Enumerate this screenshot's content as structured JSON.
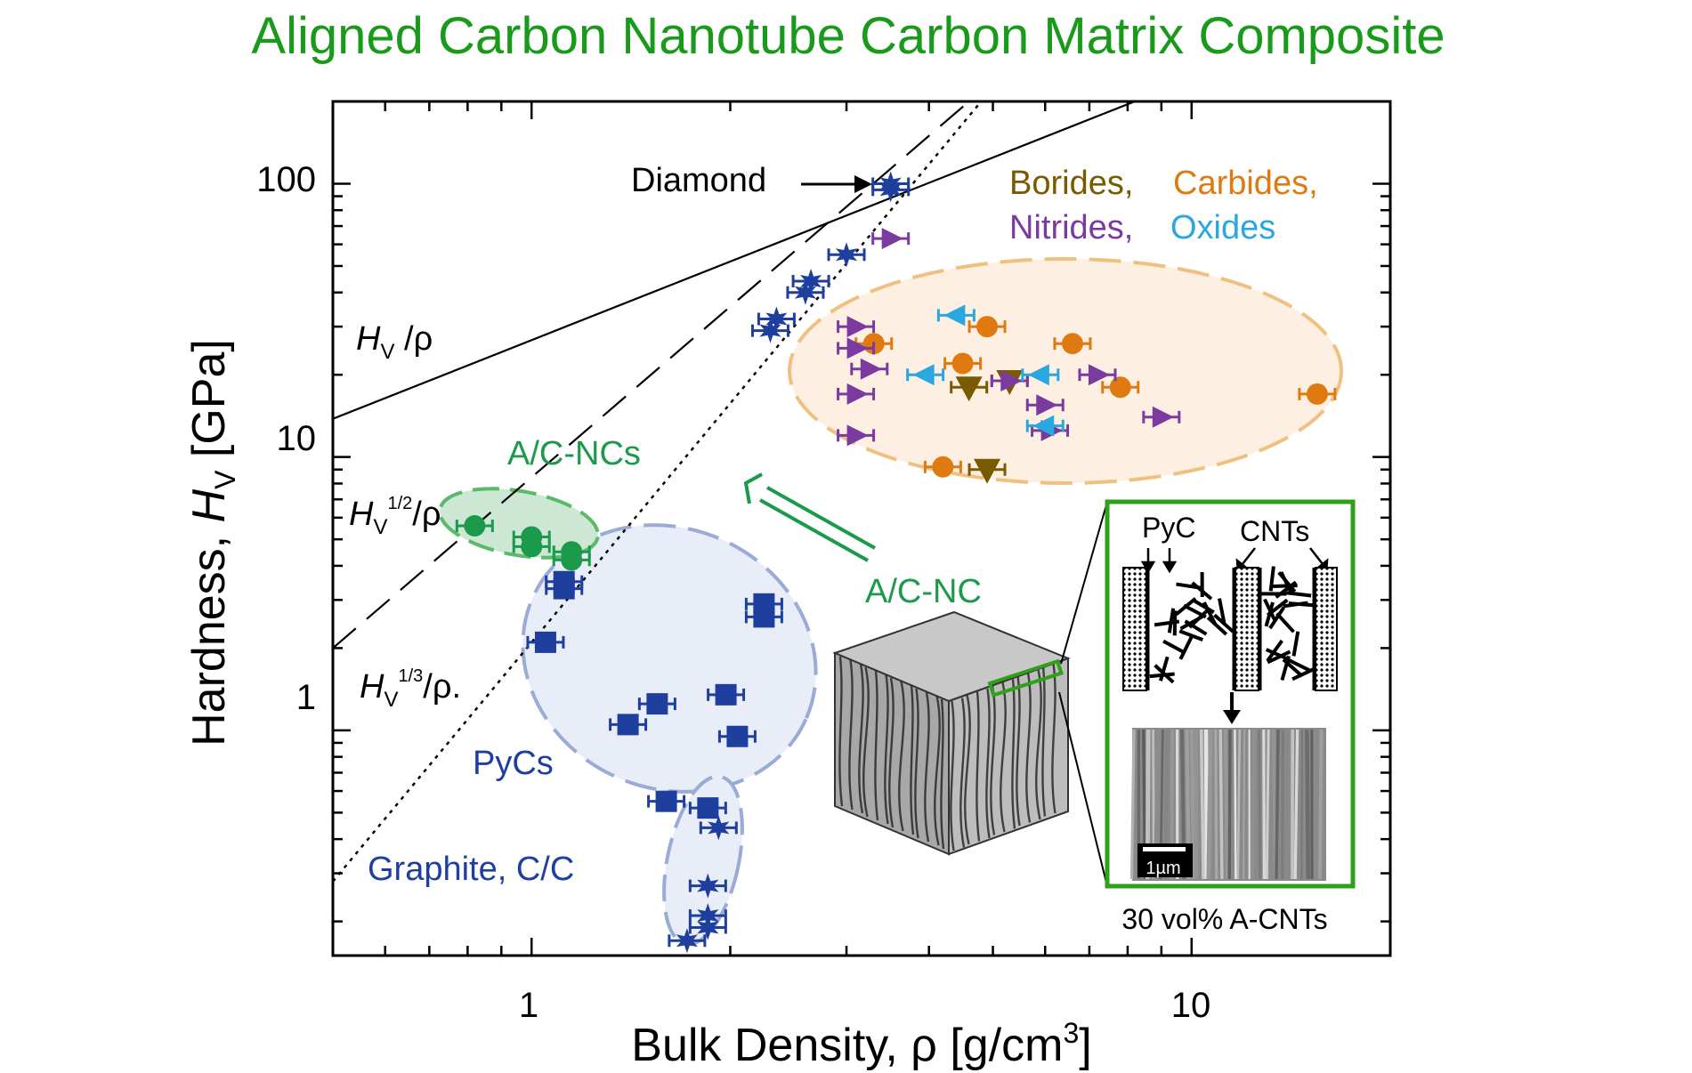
{
  "chart_data": {
    "type": "scatter",
    "title": "Aligned Carbon Nanotube Carbon Matrix Composite",
    "xlabel": "Bulk Density, ρ [g/cm³]",
    "ylabel": "Hardness, H_V [GPa]",
    "x_scale": "log",
    "y_scale": "log",
    "xlim": [
      0.5,
      20
    ],
    "ylim": [
      0.15,
      200
    ],
    "x_ticks": [
      "1",
      "10"
    ],
    "y_ticks": [
      "1",
      "10",
      "100"
    ],
    "guide_lines": [
      {
        "name": "H_V/ρ",
        "style": "solid",
        "label_sup": "",
        "x": [
          0.5,
          8.2
        ],
        "y": [
          13.8,
          200
        ]
      },
      {
        "name": "H_V^(1/2)/ρ",
        "style": "dashed",
        "label_sup": "1/2",
        "x": [
          0.5,
          4.6
        ],
        "y": [
          2.0,
          200
        ]
      },
      {
        "name": "H_V^(1/3)/ρ",
        "style": "dotted",
        "label_sup": "1/3",
        "x": [
          0.5,
          4.8
        ],
        "y": [
          0.28,
          200
        ]
      }
    ],
    "groups": [
      {
        "name": "A/C-NCs",
        "color": "#1a9a4a",
        "marker": "circle",
        "points": [
          [
            0.82,
            5.6
          ],
          [
            1.0,
            5.1
          ],
          [
            1.0,
            4.7
          ],
          [
            1.15,
            4.5
          ],
          [
            1.15,
            4.2
          ]
        ]
      },
      {
        "name": "PyCs",
        "color": "#1f3f9f",
        "marker": "square",
        "points": [
          [
            1.12,
            3.5
          ],
          [
            1.12,
            3.3
          ],
          [
            1.05,
            2.1
          ],
          [
            1.4,
            1.05
          ],
          [
            1.55,
            1.25
          ],
          [
            1.6,
            0.55
          ],
          [
            1.85,
            0.52
          ],
          [
            1.97,
            1.35
          ],
          [
            2.05,
            0.95
          ],
          [
            2.25,
            2.9
          ],
          [
            2.25,
            2.6
          ]
        ]
      },
      {
        "name": "Graphite, C/C",
        "color": "#1f3f9f",
        "marker": "star",
        "points": [
          [
            1.72,
            0.17
          ],
          [
            1.85,
            0.27
          ],
          [
            1.85,
            0.21
          ],
          [
            1.85,
            0.19
          ],
          [
            1.92,
            0.44
          ]
        ]
      },
      {
        "name": "Diamond",
        "color": "#1f3f9f",
        "marker": "star",
        "points": [
          [
            2.3,
            29
          ],
          [
            2.35,
            32
          ],
          [
            2.6,
            40
          ],
          [
            2.65,
            44
          ],
          [
            3.0,
            55
          ],
          [
            3.5,
            95
          ],
          [
            3.5,
            100
          ]
        ]
      },
      {
        "name": "Borides",
        "color": "#7a5a00",
        "marker": "triangle-down",
        "points": [
          [
            4.6,
            18
          ],
          [
            5.3,
            19
          ],
          [
            4.9,
            9
          ]
        ]
      },
      {
        "name": "Carbides",
        "color": "#e07a10",
        "marker": "circle",
        "points": [
          [
            3.3,
            26
          ],
          [
            4.5,
            22
          ],
          [
            4.9,
            30
          ],
          [
            6.6,
            26
          ],
          [
            7.8,
            18
          ],
          [
            15.5,
            17
          ],
          [
            4.2,
            9.2
          ]
        ]
      },
      {
        "name": "Nitrides",
        "color": "#7a3aa0",
        "marker": "triangle-right",
        "points": [
          [
            3.5,
            63
          ],
          [
            3.1,
            30
          ],
          [
            3.1,
            25
          ],
          [
            3.25,
            21
          ],
          [
            3.1,
            17
          ],
          [
            3.1,
            12
          ],
          [
            5.3,
            19
          ],
          [
            6.0,
            15.5
          ],
          [
            6.1,
            12.5
          ],
          [
            7.2,
            20
          ],
          [
            9.0,
            14
          ]
        ]
      },
      {
        "name": "Oxides",
        "color": "#2aa6e0",
        "marker": "triangle-left",
        "points": [
          [
            4.4,
            33
          ],
          [
            3.95,
            20
          ],
          [
            5.9,
            20
          ],
          [
            6.0,
            13
          ]
        ]
      }
    ],
    "annotations": {
      "diamond": "Diamond",
      "borides": "Borides,",
      "carbides": "Carbides,",
      "nitrides": "Nitrides,",
      "oxides": "Oxides",
      "acncs": "A/C-NCs",
      "acnc": "A/C-NC",
      "pycs": "PyCs",
      "graphite": "Graphite, C/C",
      "inset_pyc": "PyC",
      "inset_cnts": "CNTs",
      "inset_scale": "1µm",
      "inset_caption": "30 vol% A-CNTs"
    },
    "colors": {
      "title": "#1a9a1a",
      "green": "#1a9a4a",
      "blue": "#1f3f9f",
      "borides": "#7a5a00",
      "carbides": "#e07a10",
      "nitrides": "#7a3aa0",
      "oxides": "#2aa6e0",
      "inset_frame": "#2ea01a"
    }
  }
}
